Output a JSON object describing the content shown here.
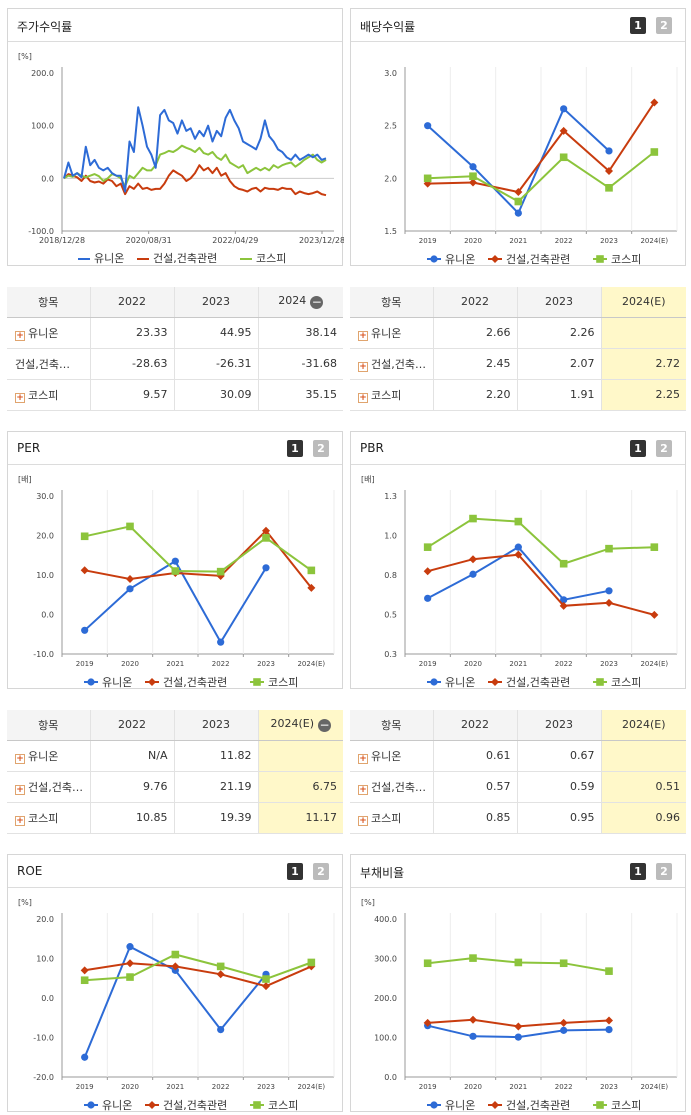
{
  "colors": {
    "series1": "#2d6bd6",
    "series2": "#c83c0e",
    "series3": "#8cc43c",
    "highlight": "#fff8c9"
  },
  "legend": [
    "유니온",
    "건설,건축관련",
    "코스피"
  ],
  "pager": [
    "1",
    "2"
  ],
  "charts": {
    "stock": {
      "title": "주가수익률",
      "unit": "[%]",
      "type": "line",
      "yticks": [
        "200.0",
        "100.0",
        "0.0",
        "-100.0"
      ],
      "ylim": [
        -100,
        200
      ],
      "xticks": [
        "2018/12/28",
        "2020/08/31",
        "2022/04/29",
        "2023/12/28"
      ],
      "series": [
        {
          "name": "유니온",
          "values": [
            0,
            30,
            5,
            10,
            2,
            60,
            25,
            35,
            20,
            15,
            20,
            10,
            5,
            5,
            -25,
            70,
            50,
            135,
            100,
            60,
            45,
            20,
            120,
            130,
            110,
            105,
            85,
            110,
            90,
            95,
            75,
            90,
            80,
            100,
            70,
            90,
            80,
            115,
            130,
            110,
            95,
            70,
            65,
            60,
            55,
            75,
            110,
            80,
            70,
            55,
            50,
            40,
            35,
            45,
            35,
            40,
            45,
            40,
            45,
            35,
            38
          ]
        },
        {
          "name": "건설,건축관련",
          "values": [
            0,
            8,
            5,
            2,
            -5,
            5,
            -5,
            -8,
            -6,
            -10,
            -2,
            -5,
            -15,
            -10,
            -30,
            -15,
            -20,
            -10,
            -20,
            -18,
            -22,
            -20,
            -20,
            -10,
            5,
            15,
            10,
            5,
            -5,
            0,
            10,
            25,
            15,
            20,
            10,
            20,
            5,
            10,
            -5,
            -15,
            -20,
            -22,
            -25,
            -20,
            -18,
            -25,
            -18,
            -20,
            -20,
            -22,
            -18,
            -20,
            -20,
            -30,
            -25,
            -28,
            -30,
            -28,
            -25,
            -30,
            -32
          ]
        },
        {
          "name": "코스피",
          "values": [
            0,
            5,
            3,
            10,
            5,
            2,
            5,
            8,
            4,
            -5,
            0,
            8,
            5,
            0,
            -15,
            5,
            0,
            10,
            20,
            15,
            15,
            25,
            45,
            48,
            52,
            50,
            55,
            62,
            58,
            55,
            50,
            58,
            48,
            45,
            50,
            40,
            35,
            45,
            30,
            25,
            20,
            25,
            10,
            15,
            20,
            15,
            20,
            15,
            25,
            20,
            25,
            28,
            30,
            22,
            28,
            35,
            40,
            45,
            35,
            30,
            35
          ]
        }
      ]
    },
    "dividend": {
      "title": "배당수익률",
      "unit": "",
      "type": "line",
      "yticks": [
        "3.0",
        "2.5",
        "2.0",
        "1.5"
      ],
      "ylim": [
        1.5,
        3.0
      ],
      "xticks": [
        "2019",
        "2020",
        "2021",
        "2022",
        "2023",
        "2024(E)"
      ],
      "series": [
        {
          "name": "유니온",
          "values": [
            2.5,
            2.11,
            1.67,
            2.66,
            2.26,
            null
          ]
        },
        {
          "name": "건설,건축관련",
          "values": [
            1.95,
            1.96,
            1.87,
            2.45,
            2.07,
            2.72
          ]
        },
        {
          "name": "코스피",
          "values": [
            2.0,
            2.02,
            1.78,
            2.2,
            1.91,
            2.25
          ]
        }
      ]
    },
    "per": {
      "title": "PER",
      "unit": "[배]",
      "type": "line",
      "yticks": [
        "30.0",
        "20.0",
        "10.0",
        "0.0",
        "-10.0"
      ],
      "ylim": [
        -10,
        30
      ],
      "xticks": [
        "2019",
        "2020",
        "2021",
        "2022",
        "2023",
        "2024(E)"
      ],
      "series": [
        {
          "name": "유니온",
          "values": [
            -4,
            6.5,
            13.5,
            -7,
            11.82,
            null
          ]
        },
        {
          "name": "건설,건축관련",
          "values": [
            11.2,
            9,
            10.5,
            9.76,
            21.19,
            6.75
          ]
        },
        {
          "name": "코스피",
          "values": [
            19.8,
            22.3,
            11,
            10.85,
            19.39,
            11.17
          ]
        }
      ]
    },
    "pbr": {
      "title": "PBR",
      "unit": "[배]",
      "type": "line",
      "yticks": [
        "1.3",
        "1.0",
        "0.8",
        "0.5",
        "0.3"
      ],
      "ylim": [
        0.25,
        1.3
      ],
      "xticks": [
        "2019",
        "2020",
        "2021",
        "2022",
        "2023",
        "2024(E)"
      ],
      "series": [
        {
          "name": "유니온",
          "values": [
            0.62,
            0.78,
            0.96,
            0.61,
            0.67,
            null
          ]
        },
        {
          "name": "건설,건축관련",
          "values": [
            0.8,
            0.88,
            0.91,
            0.57,
            0.59,
            0.51
          ]
        },
        {
          "name": "코스피",
          "values": [
            0.96,
            1.15,
            1.13,
            0.85,
            0.95,
            0.96
          ]
        }
      ]
    },
    "roe": {
      "title": "ROE",
      "unit": "[%]",
      "type": "line",
      "yticks": [
        "20.0",
        "10.0",
        "0.0",
        "-10.0",
        "-20.0"
      ],
      "ylim": [
        -20,
        20
      ],
      "xticks": [
        "2019",
        "2020",
        "2021",
        "2022",
        "2023",
        "2024(E)"
      ],
      "series": [
        {
          "name": "유니온",
          "values": [
            -15,
            13,
            7,
            -8,
            6,
            null
          ]
        },
        {
          "name": "건설,건축관련",
          "values": [
            7,
            8.8,
            8,
            6,
            3,
            8
          ]
        },
        {
          "name": "코스피",
          "values": [
            4.5,
            5.3,
            11,
            8,
            4.8,
            9
          ]
        }
      ]
    },
    "debt": {
      "title": "부채비율",
      "unit": "[%]",
      "type": "line",
      "yticks": [
        "400.0",
        "300.0",
        "200.0",
        "100.0",
        "0.0"
      ],
      "ylim": [
        0,
        400
      ],
      "xticks": [
        "2019",
        "2020",
        "2021",
        "2022",
        "2023",
        "2024(E)"
      ],
      "series": [
        {
          "name": "유니온",
          "values": [
            130,
            103,
            101,
            118,
            120,
            null
          ]
        },
        {
          "name": "건설,건축관련",
          "values": [
            137,
            145,
            128,
            137,
            143,
            null
          ]
        },
        {
          "name": "코스피",
          "values": [
            288,
            301,
            290,
            288,
            268,
            null
          ]
        }
      ]
    }
  },
  "tables": {
    "stock": {
      "headers": [
        "항목",
        "2022",
        "2023",
        "2024"
      ],
      "rows": [
        {
          "label": "유니온",
          "values": [
            "23.33",
            "44.95",
            "38.14"
          ]
        },
        {
          "label": "건설,건축…",
          "values": [
            "-28.63",
            "-26.31",
            "-31.68"
          ]
        },
        {
          "label": "코스피",
          "values": [
            "9.57",
            "30.09",
            "35.15"
          ]
        }
      ]
    },
    "dividend": {
      "headers": [
        "항목",
        "2022",
        "2023",
        "2024(E)"
      ],
      "rows": [
        {
          "label": "유니온",
          "values": [
            "2.66",
            "2.26",
            ""
          ]
        },
        {
          "label": "건설,건축…",
          "values": [
            "2.45",
            "2.07",
            "2.72"
          ]
        },
        {
          "label": "코스피",
          "values": [
            "2.20",
            "1.91",
            "2.25"
          ]
        }
      ]
    },
    "per": {
      "headers": [
        "항목",
        "2022",
        "2023",
        "2024(E)"
      ],
      "rows": [
        {
          "label": "유니온",
          "values": [
            "N/A",
            "11.82",
            ""
          ]
        },
        {
          "label": "건설,건축…",
          "values": [
            "9.76",
            "21.19",
            "6.75"
          ]
        },
        {
          "label": "코스피",
          "values": [
            "10.85",
            "19.39",
            "11.17"
          ]
        }
      ]
    },
    "pbr": {
      "headers": [
        "항목",
        "2022",
        "2023",
        "2024(E)"
      ],
      "rows": [
        {
          "label": "유니온",
          "values": [
            "0.61",
            "0.67",
            ""
          ]
        },
        {
          "label": "건설,건축…",
          "values": [
            "0.57",
            "0.59",
            "0.51"
          ]
        },
        {
          "label": "코스피",
          "values": [
            "0.85",
            "0.95",
            "0.96"
          ]
        }
      ]
    }
  }
}
